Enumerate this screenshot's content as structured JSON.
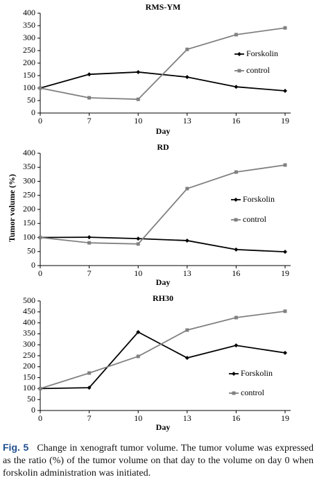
{
  "y_label": "Tumor volume (%)",
  "chart_data": [
    {
      "type": "line",
      "title": "RMS-YM",
      "xlabel": "Day",
      "categories": [
        "0",
        "7",
        "10",
        "13",
        "16",
        "19"
      ],
      "ylim": [
        0,
        400
      ],
      "yticks": [
        0,
        50,
        100,
        150,
        200,
        250,
        300,
        350,
        400
      ],
      "series": [
        {
          "name": "Forskolin",
          "color": "#000000",
          "marker": "diamond",
          "values": [
            100,
            155,
            164,
            144,
            105,
            89
          ]
        },
        {
          "name": "control",
          "color": "#808080",
          "marker": "square",
          "values": [
            100,
            61,
            55,
            255,
            314,
            341
          ]
        }
      ]
    },
    {
      "type": "line",
      "title": "RD",
      "xlabel": "Day",
      "categories": [
        "0",
        "7",
        "10",
        "13",
        "16",
        "19"
      ],
      "ylim": [
        0,
        400
      ],
      "yticks": [
        0,
        50,
        100,
        150,
        200,
        250,
        300,
        350,
        400
      ],
      "series": [
        {
          "name": "Forskolin",
          "color": "#000000",
          "marker": "diamond",
          "values": [
            100,
            101,
            96,
            89,
            57,
            49
          ]
        },
        {
          "name": "control",
          "color": "#808080",
          "marker": "square",
          "values": [
            100,
            81,
            77,
            274,
            333,
            358
          ]
        }
      ]
    },
    {
      "type": "line",
      "title": "RH30",
      "xlabel": "Day",
      "categories": [
        "0",
        "7",
        "10",
        "13",
        "16",
        "19"
      ],
      "ylim": [
        0,
        500
      ],
      "yticks": [
        0,
        50,
        100,
        150,
        200,
        250,
        300,
        350,
        400,
        450,
        500
      ],
      "series": [
        {
          "name": "Forskolin",
          "color": "#000000",
          "marker": "diamond",
          "values": [
            100,
            104,
            358,
            240,
            297,
            263
          ]
        },
        {
          "name": "control",
          "color": "#808080",
          "marker": "square",
          "values": [
            100,
            171,
            247,
            367,
            424,
            453
          ]
        }
      ]
    }
  ],
  "caption": {
    "label": "Fig. 5",
    "text": "Change in xenograft tumor volume. The tumor volume was expressed as the ratio (%) of the tumor volume on that day to the volume on day 0 when forskolin administration was initiated."
  }
}
